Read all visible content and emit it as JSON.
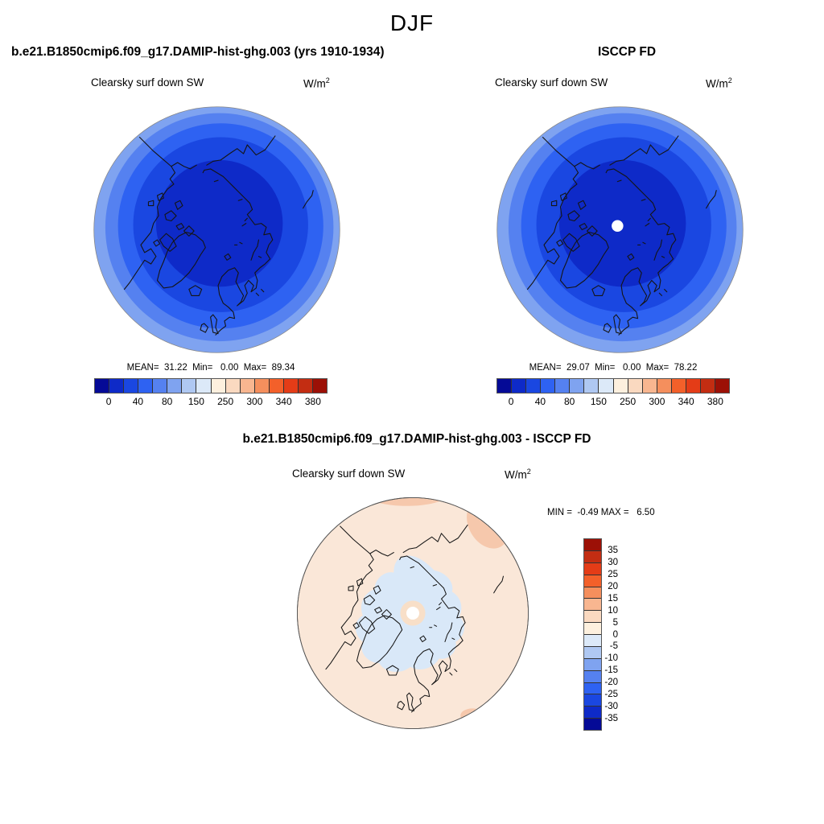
{
  "title": "DJF",
  "model_panel": {
    "header": "b.e21.B1850cmip6.f09_g17.DAMIP-hist-ghg.003 (yrs 1910-1934)",
    "subtitle": "Clearsky surf down SW",
    "units_base": "W/m",
    "units_exp": "2",
    "stats": "MEAN=  31.22  Min=   0.00  Max=  89.34"
  },
  "obs_panel": {
    "header": "ISCCP FD",
    "subtitle": "Clearsky surf down SW",
    "units_base": "W/m",
    "units_exp": "2",
    "stats": "MEAN=  29.07  Min=   0.00  Max=  78.22"
  },
  "diff_panel": {
    "header": "b.e21.B1850cmip6.f09_g17.DAMIP-hist-ghg.003 - ISCCP FD",
    "subtitle": "Clearsky surf down SW",
    "units_base": "W/m",
    "units_exp": "2",
    "stats": "MIN =  -0.49 MAX =   6.50"
  },
  "abs_colorbar": {
    "ticks": [
      "0",
      "40",
      "80",
      "150",
      "250",
      "300",
      "340",
      "380"
    ],
    "colors": [
      "#050A96",
      "#0E2AC8",
      "#1A47E1",
      "#2E62F2",
      "#5581F0",
      "#7FA3F0",
      "#AFC8F2",
      "#DCE9F8",
      "#FDF0DE",
      "#FAD9C0",
      "#F8B690",
      "#F58F5D",
      "#F3602A",
      "#E43C17",
      "#C32D12",
      "#9C1006"
    ]
  },
  "diff_colorbar": {
    "labels_top_to_bottom": [
      "35",
      "30",
      "25",
      "20",
      "15",
      "10",
      "5",
      "0",
      "-5",
      "-10",
      "-15",
      "-20",
      "-25",
      "-30",
      "-35"
    ],
    "colors_top_to_bottom": [
      "#9C1006",
      "#C32D12",
      "#E43C17",
      "#F3602A",
      "#F58F5D",
      "#F8B690",
      "#FAD9C0",
      "#FDF0DE",
      "#DCE9F8",
      "#AFC8F2",
      "#7FA3F0",
      "#5581F0",
      "#2E62F2",
      "#1A47E1",
      "#0E2AC8",
      "#050A96"
    ]
  },
  "map_colors": {
    "rings_center_to_edge": [
      "#0E2AC8",
      "#1A47E1",
      "#2E62F2",
      "#5581F0",
      "#7FA3F0"
    ],
    "diff_background": "#FAE7D8",
    "diff_negative_patch": "#D9E8F8",
    "diff_positive_patch": "#F6C8AC",
    "pole_ring": "#F8DFC8",
    "pole_hole": "#FFFFFF",
    "coastline": "#151515"
  },
  "chart_data": [
    {
      "type": "heatmap",
      "panel": "model",
      "season": "DJF",
      "title": "b.e21.B1850cmip6.f09_g17.DAMIP-hist-ghg.003 (yrs 1910-1934)",
      "variable": "Clearsky surf down SW",
      "units": "W/m^2",
      "projection": "north polar stereographic (pole centered, ~45N rim)",
      "stats": {
        "mean": 31.22,
        "min": 0.0,
        "max": 89.34
      },
      "colorbar_ticks": [
        0,
        40,
        80,
        150,
        250,
        300,
        340,
        380
      ],
      "pattern": "concentric rings: ~0 W/m^2 (dark blue) at pole increasing to ~90 W/m^2 (light blue) at rim"
    },
    {
      "type": "heatmap",
      "panel": "observation",
      "season": "DJF",
      "title": "ISCCP FD",
      "variable": "Clearsky surf down SW",
      "units": "W/m^2",
      "projection": "north polar stereographic (pole centered, ~45N rim)",
      "stats": {
        "mean": 29.07,
        "min": 0.0,
        "max": 78.22
      },
      "colorbar_ticks": [
        0,
        40,
        80,
        150,
        250,
        300,
        340,
        380
      ],
      "pattern": "same ring pattern as model with small white missing-data circle at the pole"
    },
    {
      "type": "heatmap",
      "panel": "difference (model - observation)",
      "season": "DJF",
      "title": "b.e21.B1850cmip6.f09_g17.DAMIP-hist-ghg.003 - ISCCP FD",
      "variable": "Clearsky surf down SW",
      "units": "W/m^2",
      "projection": "north polar stereographic (pole centered, ~45N rim)",
      "stats": {
        "min": -0.49,
        "max": 6.5
      },
      "colorbar_ticks": [
        -35,
        -30,
        -25,
        -20,
        -15,
        -10,
        -5,
        0,
        5,
        10,
        15,
        20,
        25,
        30,
        35
      ],
      "pattern": "mostly 0 to +5 (pale peach); -5 to 0 (pale blue) blob over central Arctic; +5 to +10 (peach) patches near northern rim; white missing-data dot at pole"
    }
  ]
}
